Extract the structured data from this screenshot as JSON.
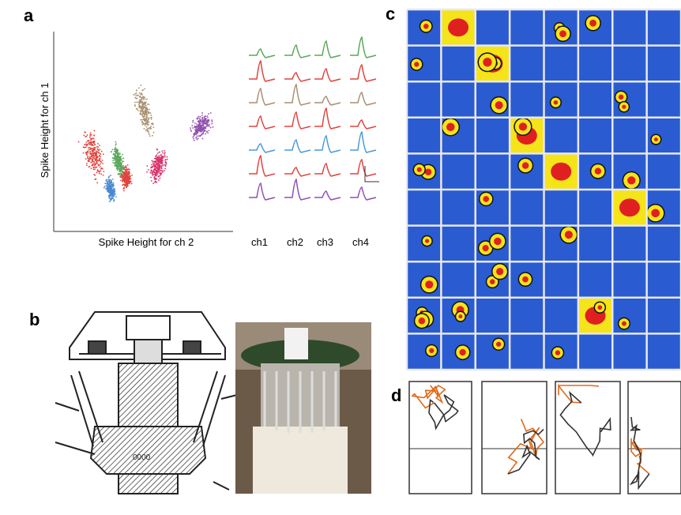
{
  "panels": {
    "a": {
      "label": "a",
      "y_axis_label": "Spike Height for ch 1",
      "x_axis_label": "Spike Height for ch 2",
      "channels": [
        "ch1",
        "ch2",
        "ch3",
        "ch4"
      ]
    },
    "b": {
      "label": "b"
    },
    "c": {
      "label": "c"
    },
    "d": {
      "label": "d"
    }
  }
}
